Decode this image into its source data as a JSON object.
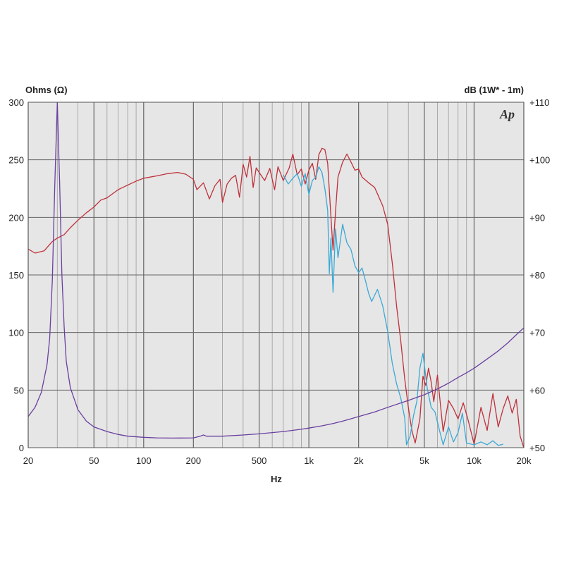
{
  "chart_data": {
    "type": "line",
    "left_axis_label": "Ohms (Ω)",
    "right_axis_label": "dB (1W* - 1m)",
    "xlabel": "Hz",
    "logo": "Ap",
    "x_scale": "log",
    "xlim": [
      20,
      20000
    ],
    "ylim_left": [
      0,
      300
    ],
    "ylim_right": [
      50,
      110
    ],
    "grid": true,
    "x_ticks": [
      {
        "value": 20,
        "label": "20"
      },
      {
        "value": 50,
        "label": "50"
      },
      {
        "value": 100,
        "label": "100"
      },
      {
        "value": 200,
        "label": "200"
      },
      {
        "value": 500,
        "label": "500"
      },
      {
        "value": 1000,
        "label": "1k"
      },
      {
        "value": 2000,
        "label": "2k"
      },
      {
        "value": 5000,
        "label": "5k"
      },
      {
        "value": 10000,
        "label": "10k"
      },
      {
        "value": 20000,
        "label": "20k"
      }
    ],
    "left_ticks": [
      0,
      50,
      100,
      150,
      200,
      250,
      300
    ],
    "right_ticks": [
      "+50",
      "+60",
      "+70",
      "+80",
      "+90",
      "+100",
      "+110"
    ],
    "series": [
      {
        "axis": "right",
        "color": "#c0303a",
        "points": [
          [
            20,
            84.5
          ],
          [
            22,
            83.8
          ],
          [
            25,
            84.2
          ],
          [
            28,
            85.8
          ],
          [
            30,
            86.4
          ],
          [
            33,
            87.0
          ],
          [
            36,
            88.2
          ],
          [
            40,
            89.5
          ],
          [
            45,
            90.8
          ],
          [
            50,
            91.8
          ],
          [
            55,
            93.0
          ],
          [
            60,
            93.4
          ],
          [
            70,
            94.8
          ],
          [
            80,
            95.6
          ],
          [
            90,
            96.3
          ],
          [
            100,
            96.8
          ],
          [
            120,
            97.2
          ],
          [
            140,
            97.6
          ],
          [
            160,
            97.8
          ],
          [
            180,
            97.5
          ],
          [
            200,
            96.6
          ],
          [
            210,
            94.8
          ],
          [
            230,
            96.0
          ],
          [
            250,
            93.2
          ],
          [
            270,
            95.5
          ],
          [
            290,
            96.6
          ],
          [
            300,
            92.6
          ],
          [
            320,
            95.8
          ],
          [
            340,
            96.8
          ],
          [
            360,
            97.3
          ],
          [
            380,
            93.5
          ],
          [
            400,
            99.2
          ],
          [
            420,
            97.0
          ],
          [
            440,
            100.6
          ],
          [
            460,
            95.2
          ],
          [
            480,
            98.6
          ],
          [
            500,
            97.8
          ],
          [
            540,
            96.4
          ],
          [
            580,
            98.5
          ],
          [
            620,
            94.8
          ],
          [
            650,
            98.8
          ],
          [
            700,
            96.4
          ],
          [
            760,
            98.6
          ],
          [
            800,
            101.0
          ],
          [
            850,
            97.4
          ],
          [
            900,
            98.4
          ],
          [
            950,
            95.8
          ],
          [
            1000,
            98.2
          ],
          [
            1050,
            99.4
          ],
          [
            1100,
            96.6
          ],
          [
            1150,
            100.9
          ],
          [
            1200,
            102.0
          ],
          [
            1250,
            101.8
          ],
          [
            1300,
            99.4
          ],
          [
            1350,
            91.5
          ],
          [
            1400,
            84.3
          ],
          [
            1450,
            91.0
          ],
          [
            1500,
            97.0
          ],
          [
            1600,
            99.6
          ],
          [
            1700,
            101.0
          ],
          [
            1800,
            99.6
          ],
          [
            1900,
            98.2
          ],
          [
            2000,
            98.4
          ],
          [
            2100,
            97.0
          ],
          [
            2300,
            96.0
          ],
          [
            2500,
            95.2
          ],
          [
            2800,
            92.0
          ],
          [
            3000,
            88.8
          ],
          [
            3200,
            82.0
          ],
          [
            3400,
            74.4
          ],
          [
            3600,
            68.5
          ],
          [
            3800,
            62.0
          ],
          [
            4000,
            57.0
          ],
          [
            4200,
            53.0
          ],
          [
            4400,
            50.8
          ],
          [
            4700,
            55.0
          ],
          [
            4900,
            62.4
          ],
          [
            5100,
            60.8
          ],
          [
            5300,
            63.8
          ],
          [
            5500,
            61.4
          ],
          [
            5700,
            58.0
          ],
          [
            6000,
            62.6
          ],
          [
            6500,
            52.8
          ],
          [
            7000,
            58.2
          ],
          [
            7500,
            56.8
          ],
          [
            8000,
            55.0
          ],
          [
            8600,
            57.8
          ],
          [
            9200,
            54.8
          ],
          [
            10000,
            50.6
          ],
          [
            11000,
            57.0
          ],
          [
            12000,
            53.0
          ],
          [
            13000,
            59.4
          ],
          [
            14000,
            53.6
          ],
          [
            15000,
            56.8
          ],
          [
            16000,
            59.0
          ],
          [
            17000,
            56.0
          ],
          [
            18000,
            58.4
          ],
          [
            19000,
            52.0
          ],
          [
            20000,
            50.0
          ]
        ]
      },
      {
        "axis": "right",
        "color": "#3aa9d6",
        "points": [
          [
            700,
            97.4
          ],
          [
            750,
            95.8
          ],
          [
            800,
            96.8
          ],
          [
            850,
            97.6
          ],
          [
            900,
            95.4
          ],
          [
            950,
            97.6
          ],
          [
            1000,
            94.0
          ],
          [
            1050,
            96.4
          ],
          [
            1100,
            97.0
          ],
          [
            1150,
            98.8
          ],
          [
            1200,
            97.8
          ],
          [
            1250,
            95.0
          ],
          [
            1300,
            91.2
          ],
          [
            1330,
            80.2
          ],
          [
            1360,
            86.4
          ],
          [
            1400,
            77.0
          ],
          [
            1450,
            88.0
          ],
          [
            1500,
            83.0
          ],
          [
            1600,
            88.8
          ],
          [
            1700,
            85.6
          ],
          [
            1800,
            84.4
          ],
          [
            1900,
            81.6
          ],
          [
            2000,
            80.4
          ],
          [
            2100,
            81.2
          ],
          [
            2200,
            79.0
          ],
          [
            2300,
            76.8
          ],
          [
            2400,
            75.4
          ],
          [
            2600,
            77.5
          ],
          [
            2800,
            74.6
          ],
          [
            3000,
            70.2
          ],
          [
            3200,
            64.6
          ],
          [
            3400,
            61.0
          ],
          [
            3600,
            58.6
          ],
          [
            3800,
            55.2
          ],
          [
            3900,
            50.5
          ],
          [
            4100,
            52.0
          ],
          [
            4300,
            55.6
          ],
          [
            4500,
            58.0
          ],
          [
            4700,
            63.8
          ],
          [
            4900,
            66.4
          ],
          [
            5200,
            60.4
          ],
          [
            5500,
            57.0
          ],
          [
            5800,
            56.2
          ],
          [
            6200,
            52.8
          ],
          [
            6500,
            50.5
          ],
          [
            7000,
            53.6
          ],
          [
            7500,
            51.0
          ],
          [
            8000,
            52.6
          ],
          [
            8500,
            56.0
          ],
          [
            9000,
            50.8
          ],
          [
            10000,
            50.5
          ],
          [
            11000,
            51.0
          ],
          [
            12000,
            50.5
          ],
          [
            13000,
            51.2
          ],
          [
            14000,
            50.4
          ],
          [
            15000,
            50.6
          ]
        ]
      },
      {
        "axis": "left",
        "color": "#6a3fa0",
        "points": [
          [
            20,
            27
          ],
          [
            22,
            35
          ],
          [
            24,
            48
          ],
          [
            26,
            72
          ],
          [
            27,
            95
          ],
          [
            28,
            145
          ],
          [
            29,
            230
          ],
          [
            30,
            300
          ],
          [
            31,
            230
          ],
          [
            32,
            150
          ],
          [
            33,
            105
          ],
          [
            34,
            75
          ],
          [
            36,
            52
          ],
          [
            40,
            33
          ],
          [
            45,
            23
          ],
          [
            50,
            18
          ],
          [
            60,
            14
          ],
          [
            70,
            11.5
          ],
          [
            80,
            10
          ],
          [
            100,
            9
          ],
          [
            120,
            8.5
          ],
          [
            150,
            8.3
          ],
          [
            200,
            8.5
          ],
          [
            220,
            10
          ],
          [
            230,
            11
          ],
          [
            240,
            10
          ],
          [
            300,
            10
          ],
          [
            400,
            11
          ],
          [
            500,
            12
          ],
          [
            700,
            14
          ],
          [
            900,
            16
          ],
          [
            1000,
            17
          ],
          [
            1200,
            19
          ],
          [
            1400,
            21
          ],
          [
            1600,
            23
          ],
          [
            2000,
            27
          ],
          [
            2500,
            31
          ],
          [
            3000,
            35
          ],
          [
            4000,
            41
          ],
          [
            5000,
            46
          ],
          [
            6000,
            51
          ],
          [
            7000,
            56
          ],
          [
            8000,
            61
          ],
          [
            9000,
            65
          ],
          [
            10000,
            69
          ],
          [
            12000,
            77
          ],
          [
            14000,
            84
          ],
          [
            16000,
            91
          ],
          [
            18000,
            98
          ],
          [
            20000,
            104
          ]
        ]
      }
    ]
  }
}
